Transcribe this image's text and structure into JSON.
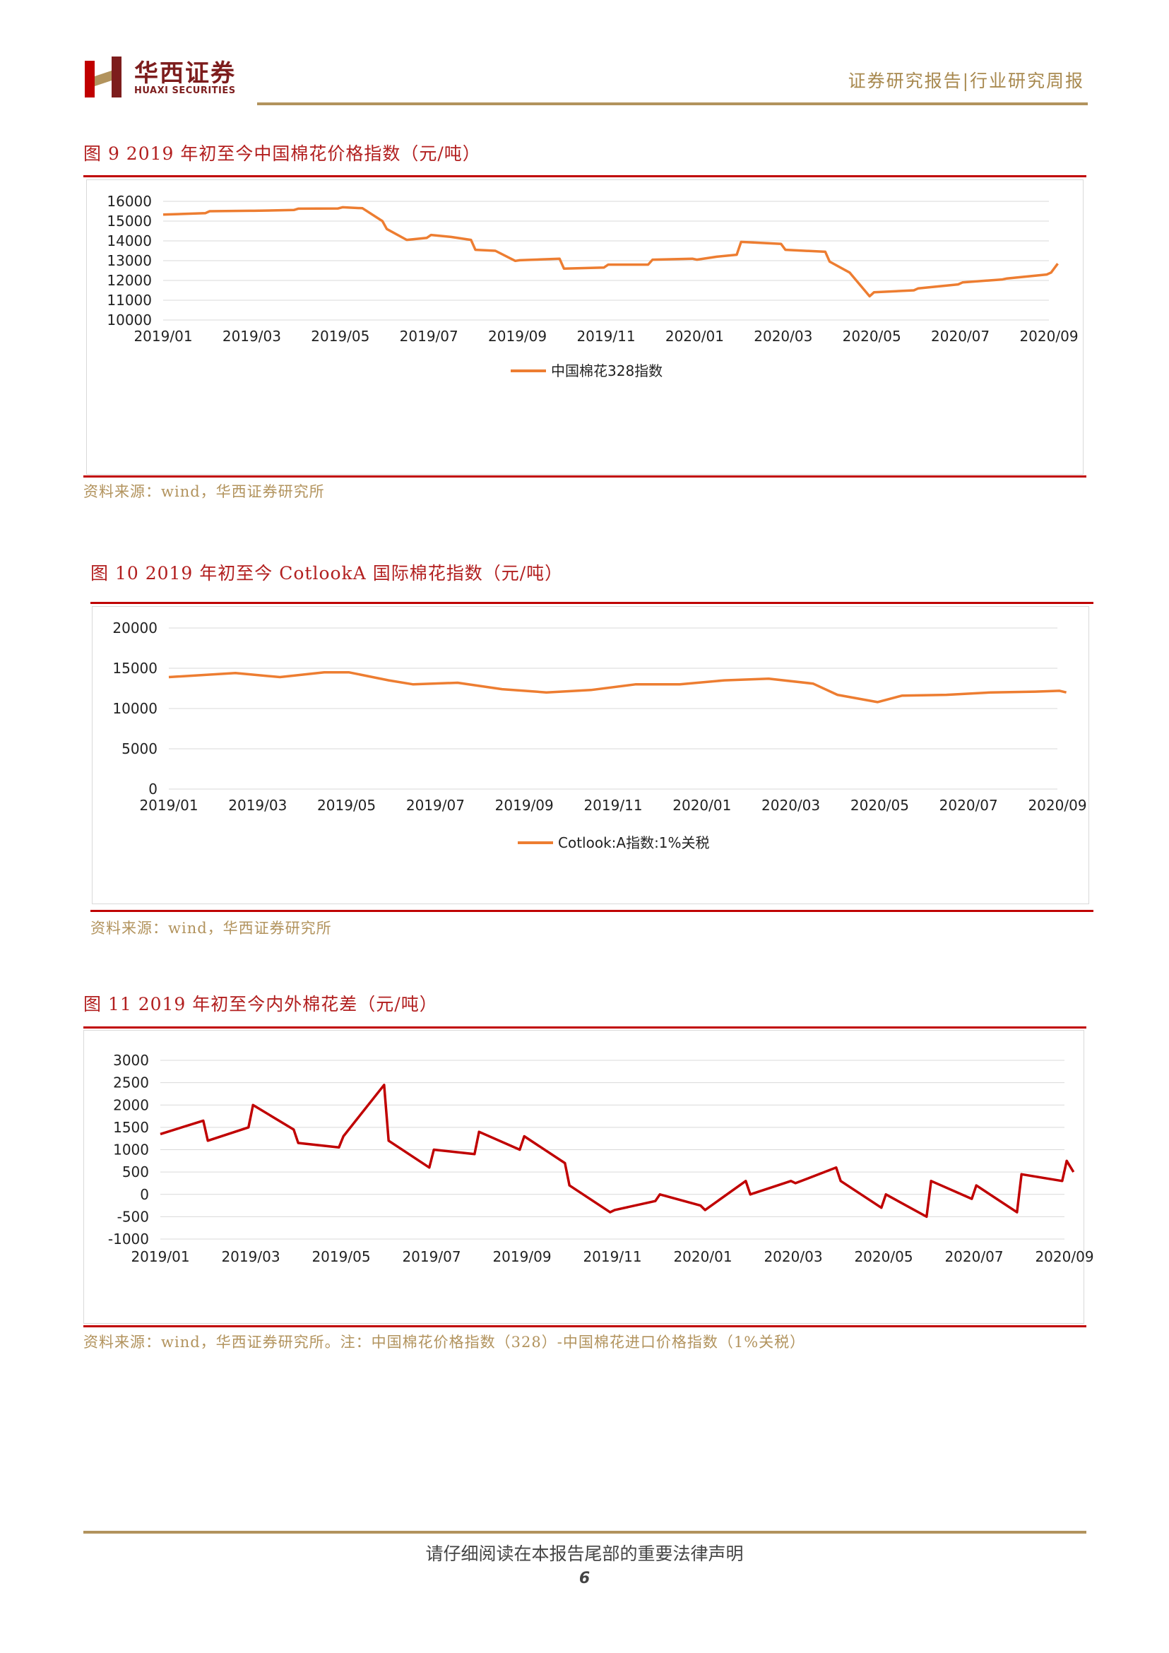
{
  "header": {
    "logo_icon": "huaxi-h-logo",
    "brand_cn": "华西证券",
    "brand_en": "HUAXI SECURITIES",
    "report_type": "证券研究报告|行业研究周报"
  },
  "colors": {
    "accent_red": "#c00000",
    "gold": "#b2935d",
    "orange_series": "#ed7d31",
    "red_series": "#c00000"
  },
  "figures": [
    {
      "title": "图 9 2019 年初至今中国棉花价格指数（元/吨）",
      "source": "资料来源：wind，华西证券研究所"
    },
    {
      "title": "图 10 2019 年初至今 CotlookA 国际棉花指数（元/吨）",
      "source": "资料来源：wind，华西证券研究所"
    },
    {
      "title": "图 11 2019 年初至今内外棉花差（元/吨）",
      "source": "资料来源：wind，华西证券研究所。注：中国棉花价格指数（328）-中国棉花进口价格指数（1%关税）"
    }
  ],
  "chart_data": [
    {
      "type": "line",
      "x_tick_labels": [
        "2019/01",
        "2019/03",
        "2019/05",
        "2019/07",
        "2019/09",
        "2019/11",
        "2020/01",
        "2020/03",
        "2020/05",
        "2020/07",
        "2020/09"
      ],
      "y_tick_labels": [
        "10000",
        "11000",
        "12000",
        "13000",
        "14000",
        "15000",
        "16000"
      ],
      "ylim": [
        10000,
        16000
      ],
      "legend": "bottom-center",
      "grid": true,
      "series": [
        {
          "name": "中国棉花328指数",
          "color": "#ed7d31",
          "x": [
            "2019/01",
            "2019/01",
            "2019/02",
            "2019/02",
            "2019/03",
            "2019/03",
            "2019/04",
            "2019/04",
            "2019/05",
            "2019/05",
            "2019/05",
            "2019/06",
            "2019/06",
            "2019/06",
            "2019/07",
            "2019/07",
            "2019/07",
            "2019/08",
            "2019/08",
            "2019/08",
            "2019/09",
            "2019/09",
            "2019/10",
            "2019/10",
            "2019/11",
            "2019/11",
            "2019/12",
            "2019/12",
            "2020/01",
            "2020/01",
            "2020/01",
            "2020/02",
            "2020/02",
            "2020/03",
            "2020/03",
            "2020/04",
            "2020/04",
            "2020/04",
            "2020/05",
            "2020/05",
            "2020/06",
            "2020/06",
            "2020/07",
            "2020/07",
            "2020/08",
            "2020/08",
            "2020/09",
            "2020/09"
          ],
          "values": [
            15330,
            15400,
            15500,
            15520,
            15520,
            15560,
            15630,
            15640,
            15700,
            15650,
            15000,
            14600,
            14050,
            14150,
            14300,
            14200,
            14050,
            13550,
            13500,
            12990,
            13020,
            13100,
            12600,
            12650,
            12800,
            12800,
            13050,
            13100,
            13050,
            13200,
            13300,
            13950,
            13850,
            13550,
            13450,
            12950,
            12400,
            11200,
            11400,
            11500,
            11600,
            11800,
            11900,
            12050,
            12100,
            12300,
            12400,
            12850
          ]
        }
      ]
    },
    {
      "type": "line",
      "x_tick_labels": [
        "2019/01",
        "2019/03",
        "2019/05",
        "2019/07",
        "2019/09",
        "2019/11",
        "2020/01",
        "2020/03",
        "2020/05",
        "2020/07",
        "2020/09"
      ],
      "y_tick_labels": [
        "0",
        "5000",
        "10000",
        "15000",
        "20000"
      ],
      "ylim": [
        0,
        20000
      ],
      "legend": "bottom-center",
      "grid": true,
      "series": [
        {
          "name": "Cotlook:A指数:1%关税",
          "color": "#ed7d31",
          "x": [
            "2019/01",
            "2019/02",
            "2019/03",
            "2019/04",
            "2019/05",
            "2019/05",
            "2019/06",
            "2019/07",
            "2019/08",
            "2019/09",
            "2019/10",
            "2019/11",
            "2019/12",
            "2020/01",
            "2020/02",
            "2020/03",
            "2020/04",
            "2020/04",
            "2020/05",
            "2020/06",
            "2020/07",
            "2020/08",
            "2020/09",
            "2020/09"
          ],
          "values": [
            13900,
            14400,
            13900,
            14500,
            14500,
            13500,
            13000,
            13200,
            12400,
            12000,
            12300,
            13000,
            13000,
            13500,
            13700,
            13100,
            11700,
            10800,
            11600,
            11700,
            12000,
            12100,
            12200,
            12000
          ]
        }
      ]
    },
    {
      "type": "line",
      "x_tick_labels": [
        "2019/01",
        "2019/03",
        "2019/05",
        "2019/07",
        "2019/09",
        "2019/11",
        "2020/01",
        "2020/03",
        "2020/05",
        "2020/07",
        "2020/09"
      ],
      "y_tick_labels": [
        "-1000",
        "-500",
        "0",
        "500",
        "1000",
        "1500",
        "2000",
        "2500",
        "3000"
      ],
      "ylim": [
        -1000,
        3000
      ],
      "legend": "none",
      "grid": true,
      "series": [
        {
          "name": "",
          "color": "#c00000",
          "x": [
            "2019/01",
            "2019/01",
            "2019/02",
            "2019/02",
            "2019/03",
            "2019/03",
            "2019/04",
            "2019/04",
            "2019/05",
            "2019/05",
            "2019/06",
            "2019/06",
            "2019/07",
            "2019/07",
            "2019/08",
            "2019/08",
            "2019/09",
            "2019/09",
            "2019/10",
            "2019/10",
            "2019/11",
            "2019/11",
            "2019/12",
            "2019/12",
            "2020/01",
            "2020/01",
            "2020/02",
            "2020/02",
            "2020/03",
            "2020/03",
            "2020/04",
            "2020/04",
            "2020/05",
            "2020/05",
            "2020/06",
            "2020/06",
            "2020/07",
            "2020/07",
            "2020/08",
            "2020/08",
            "2020/09",
            "2020/09"
          ],
          "values": [
            1350,
            1650,
            1200,
            1500,
            2000,
            1450,
            1150,
            1050,
            1300,
            2450,
            1200,
            600,
            1000,
            900,
            1400,
            1000,
            1300,
            700,
            200,
            -400,
            -350,
            -150,
            0,
            -250,
            -350,
            300,
            0,
            300,
            250,
            600,
            300,
            -300,
            0,
            -500,
            300,
            -100,
            200,
            -400,
            450,
            300,
            750,
            500
          ]
        }
      ]
    }
  ],
  "footer": {
    "disclaimer": "请仔细阅读在本报告尾部的重要法律声明",
    "page_number": "6"
  }
}
